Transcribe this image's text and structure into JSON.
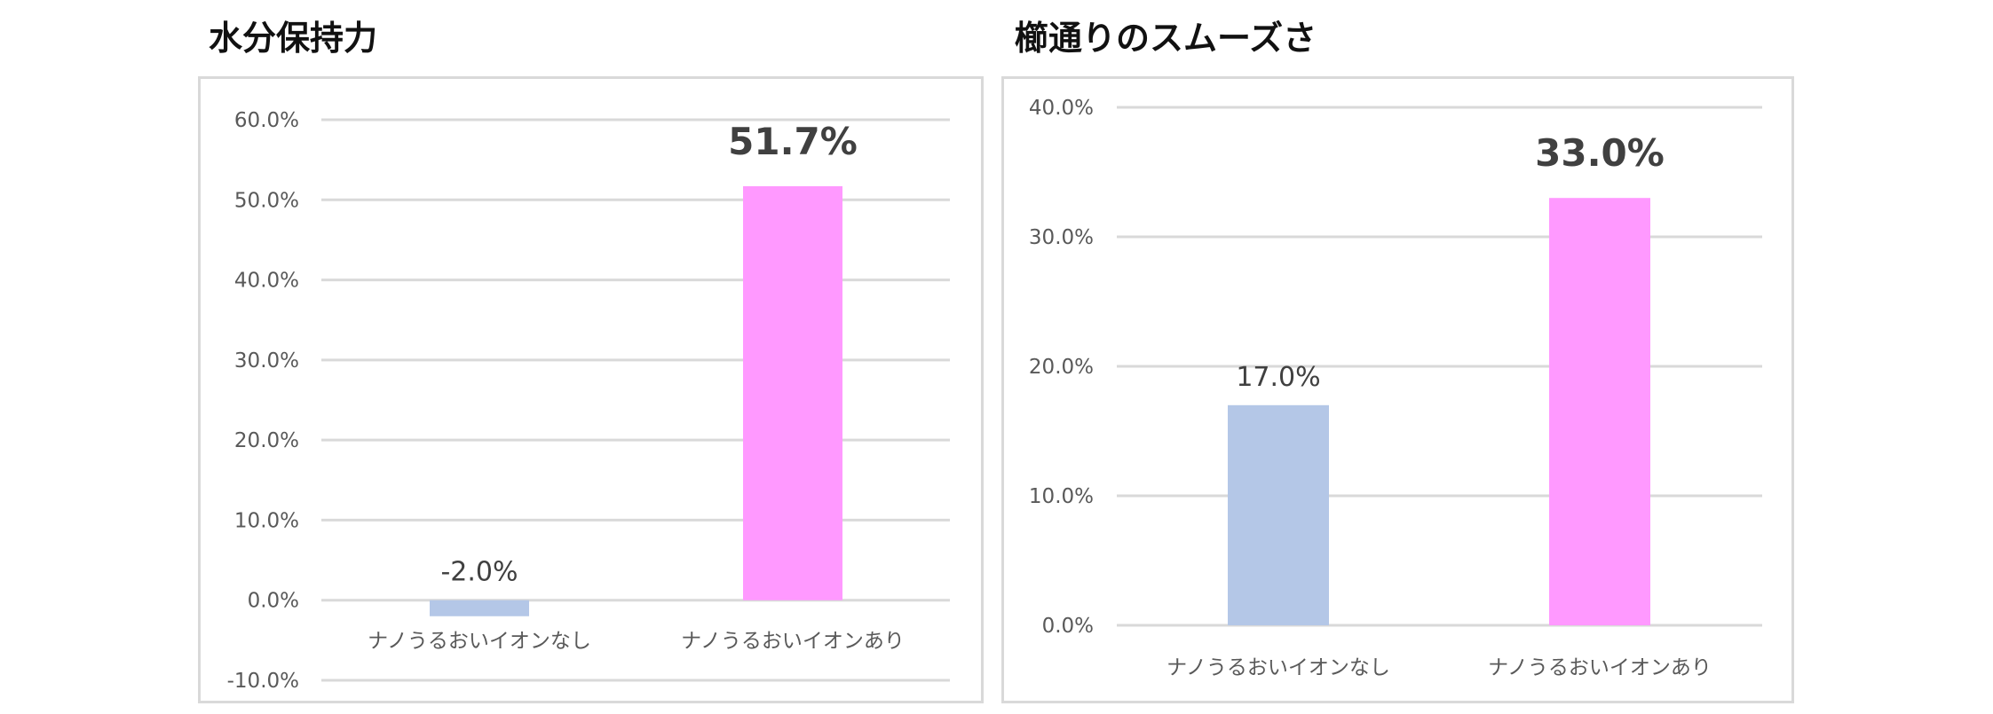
{
  "chart_data": [
    {
      "type": "bar",
      "title": "水分保持力",
      "categories": [
        "ナノうるおいイオンなし",
        "ナノうるおいイオンあり"
      ],
      "values": [
        -2.0,
        51.7
      ],
      "data_labels": [
        "-2.0%",
        "51.7%"
      ],
      "bar_colors": [
        "#b4c7e7",
        "#ff99ff"
      ],
      "ylim": [
        -10,
        60
      ],
      "yticks": [
        60,
        50,
        40,
        30,
        20,
        10,
        0,
        -10
      ],
      "ytick_labels": [
        "60.0%",
        "50.0%",
        "40.0%",
        "30.0%",
        "20.0%",
        "10.0%",
        "0.0%",
        "-10.0%"
      ],
      "xlabel": "",
      "ylabel": "",
      "grid": true,
      "legend": "none"
    },
    {
      "type": "bar",
      "title": "櫛通りのスムーズさ",
      "categories": [
        "ナノうるおいイオンなし",
        "ナノうるおいイオンあり"
      ],
      "values": [
        17.0,
        33.0
      ],
      "data_labels": [
        "17.0%",
        "33.0%"
      ],
      "bar_colors": [
        "#b4c7e7",
        "#ff99ff"
      ],
      "ylim": [
        0,
        40
      ],
      "yticks": [
        40,
        30,
        20,
        10,
        0
      ],
      "ytick_labels": [
        "40.0%",
        "30.0%",
        "20.0%",
        "10.0%",
        "0.0%"
      ],
      "xlabel": "",
      "ylabel": "",
      "grid": true,
      "legend": "none"
    }
  ],
  "colors": {
    "gridline": "#d9d9d9",
    "frame": "#d9d9d9",
    "tick_text": "#595959",
    "data_label_text": "#404040"
  }
}
